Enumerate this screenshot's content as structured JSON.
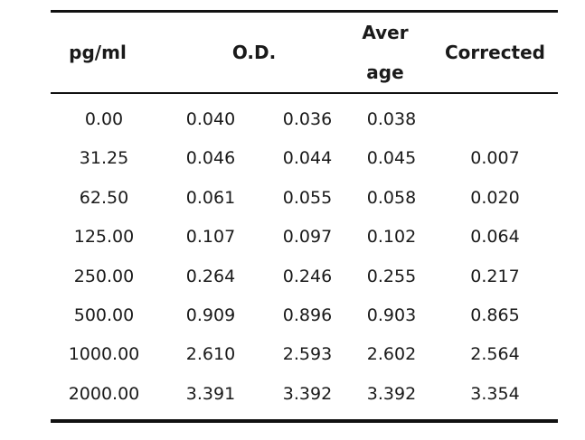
{
  "table": {
    "headers": {
      "concentration": "pg/ml",
      "od": "O.D.",
      "average_line1": "Aver",
      "average_line2": "age",
      "corrected": "Corrected"
    },
    "rows": [
      [
        "0.00",
        "0.040",
        "0.036",
        "0.038",
        ""
      ],
      [
        "31.25",
        "0.046",
        "0.044",
        "0.045",
        "0.007"
      ],
      [
        "62.50",
        "0.061",
        "0.055",
        "0.058",
        "0.020"
      ],
      [
        "125.00",
        "0.107",
        "0.097",
        "0.102",
        "0.064"
      ],
      [
        "250.00",
        "0.264",
        "0.246",
        "0.255",
        "0.217"
      ],
      [
        "500.00",
        "0.909",
        "0.896",
        "0.903",
        "0.865"
      ],
      [
        "1000.00",
        "2.610",
        "2.593",
        "2.602",
        "2.564"
      ],
      [
        "2000.00",
        "3.391",
        "3.392",
        "3.392",
        "3.354"
      ]
    ]
  }
}
